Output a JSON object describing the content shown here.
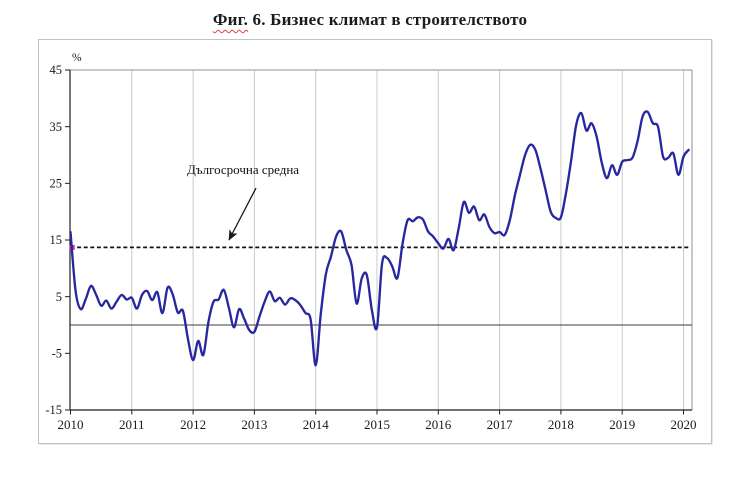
{
  "title": {
    "prefix": "Фиг.",
    "rest": " 6. Бизнес климат в строителството",
    "full": "Фиг. 6. Бизнес климат в строителството"
  },
  "chart_data": {
    "type": "line",
    "title": "Фиг. 6. Бизнес климат в строителството",
    "xlabel": "",
    "ylabel": "%",
    "ylim": [
      -15,
      45
    ],
    "y_ticks": [
      45,
      35,
      25,
      15,
      5,
      -5,
      -15
    ],
    "x_ticks": [
      2010,
      2011,
      2012,
      2013,
      2014,
      2015,
      2016,
      2017,
      2018,
      2019,
      2020
    ],
    "grid": "vertical-yearly",
    "legend": "none",
    "zero_line": 0,
    "long_term_average": {
      "label": "Дългосрочна средна",
      "value": 13.7,
      "style": "dashed-black",
      "start_marker_color": "#c72ba6"
    },
    "series": [
      {
        "name": "Бизнес климат в строителството",
        "color": "#27279f",
        "frequency": "monthly",
        "start": "2010-01",
        "end": "2020-02",
        "values": [
          16.4,
          6.0,
          2.8,
          4.6,
          6.9,
          5.4,
          3.4,
          4.3,
          2.9,
          4.1,
          5.3,
          4.5,
          4.8,
          2.9,
          5.3,
          6.0,
          4.4,
          5.8,
          2.1,
          6.6,
          5.4,
          2.2,
          2.5,
          -2.5,
          -6.2,
          -2.8,
          -5.3,
          0.5,
          4.1,
          4.5,
          6.2,
          3.0,
          -0.4,
          2.8,
          1.1,
          -0.9,
          -1.2,
          1.5,
          4.1,
          5.9,
          4.2,
          4.8,
          3.6,
          4.7,
          4.4,
          3.5,
          2.1,
          1.0,
          -7.1,
          2.0,
          9.0,
          12.1,
          15.6,
          16.5,
          13.2,
          10.6,
          3.8,
          8.2,
          8.8,
          2.6,
          -0.4,
          10.9,
          11.8,
          10.3,
          8.3,
          14.3,
          18.5,
          18.3,
          19.0,
          18.6,
          16.5,
          15.6,
          14.4,
          13.5,
          15.2,
          13.2,
          17.1,
          21.7,
          19.8,
          20.9,
          18.5,
          19.5,
          17.3,
          16.2,
          16.4,
          15.9,
          18.5,
          22.9,
          26.5,
          30.0,
          31.8,
          30.9,
          27.6,
          23.8,
          20.0,
          18.9,
          19.0,
          23.3,
          29.0,
          35.3,
          37.4,
          34.3,
          35.6,
          33.2,
          28.6,
          25.9,
          28.2,
          26.5,
          28.8,
          29.1,
          29.5,
          32.4,
          36.8,
          37.6,
          35.6,
          35.0,
          29.7,
          29.5,
          30.3,
          26.5,
          29.7,
          30.9
        ]
      }
    ]
  }
}
